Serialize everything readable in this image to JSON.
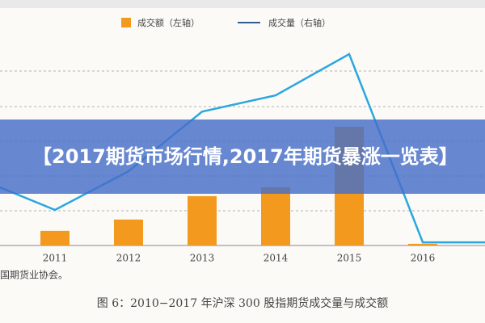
{
  "chart_data": {
    "type": "bar-line",
    "categories": [
      null,
      "2011",
      "2012",
      "2013",
      "2014",
      "2015",
      "2016",
      null
    ],
    "series": [
      {
        "name": "成交额（左轴）",
        "color": "#f39a1e",
        "type": "bar",
        "values": [
          null,
          7,
          12.4,
          23.6,
          27.8,
          56.8,
          0.8,
          null
        ]
      },
      {
        "name": "成交量（右轴）",
        "color": "#2aa7df",
        "type": "line",
        "axis": "y2",
        "values": [
          27.8,
          17,
          35.5,
          64,
          71.8,
          91.5,
          1.5,
          1.5
        ]
      }
    ],
    "ylim": [
      0,
      100
    ],
    "y2lim": [
      0,
      100
    ],
    "grid": true,
    "source": "国期货业协会。",
    "caption": "图 6：2010−2017 年沪深 300 股指期货成交量与成交额"
  },
  "overlay_title": "【2017期货市场行情,2017年期货暴涨一览表】"
}
